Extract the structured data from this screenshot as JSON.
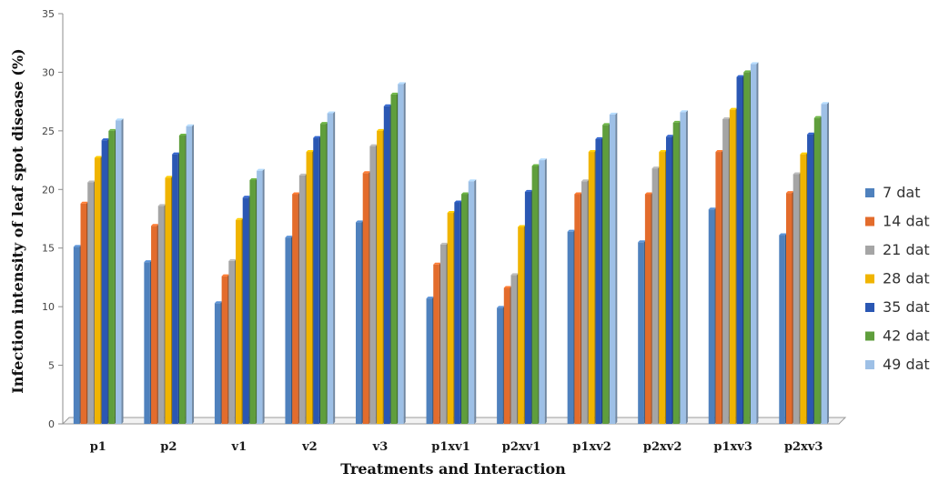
{
  "chart_data": {
    "type": "bar",
    "title": "",
    "xlabel": "Treatments and Interaction",
    "ylabel": "Infection intensity of leaf spot  disease (%)",
    "ylim": [
      0,
      35
    ],
    "yticks": [
      0,
      5,
      10,
      15,
      20,
      25,
      30,
      35
    ],
    "grid": false,
    "legend_position": "right",
    "categories": [
      "p1",
      "p2",
      "v1",
      "v2",
      "v3",
      "p1xv1",
      "p2xv1",
      "p1xv2",
      "p2xv2",
      "p1xv3",
      "p2xv3"
    ],
    "series": [
      {
        "name": "7 dat",
        "color": "#4f81bd",
        "values": [
          15.1,
          13.8,
          10.3,
          15.9,
          17.2,
          10.7,
          9.9,
          16.4,
          15.5,
          18.3,
          16.1
        ]
      },
      {
        "name": "14 dat",
        "color": "#e36c2c",
        "values": [
          18.8,
          16.9,
          12.6,
          19.6,
          21.4,
          13.6,
          11.6,
          19.6,
          19.6,
          23.2,
          19.7
        ]
      },
      {
        "name": "21 dat",
        "color": "#a5a5a5",
        "values": [
          20.6,
          18.6,
          13.9,
          21.2,
          23.7,
          15.3,
          12.7,
          20.7,
          21.8,
          26.0,
          21.3
        ]
      },
      {
        "name": "28 dat",
        "color": "#f0b400",
        "values": [
          22.7,
          21.0,
          17.4,
          23.2,
          25.0,
          18.0,
          16.8,
          23.2,
          23.2,
          26.8,
          23.0
        ]
      },
      {
        "name": "35 dat",
        "color": "#2a57b3",
        "values": [
          24.2,
          23.0,
          19.3,
          24.4,
          27.1,
          18.9,
          19.8,
          24.3,
          24.5,
          29.6,
          24.7
        ]
      },
      {
        "name": "42 dat",
        "color": "#5f9e3c",
        "values": [
          25.0,
          24.6,
          20.8,
          25.6,
          28.1,
          19.6,
          22.0,
          25.5,
          25.7,
          30.0,
          26.1
        ]
      },
      {
        "name": "49 dat",
        "color": "#9ec0e6",
        "values": [
          25.9,
          25.4,
          21.6,
          26.5,
          29.0,
          20.7,
          22.5,
          26.4,
          26.6,
          30.7,
          27.3
        ]
      }
    ]
  }
}
